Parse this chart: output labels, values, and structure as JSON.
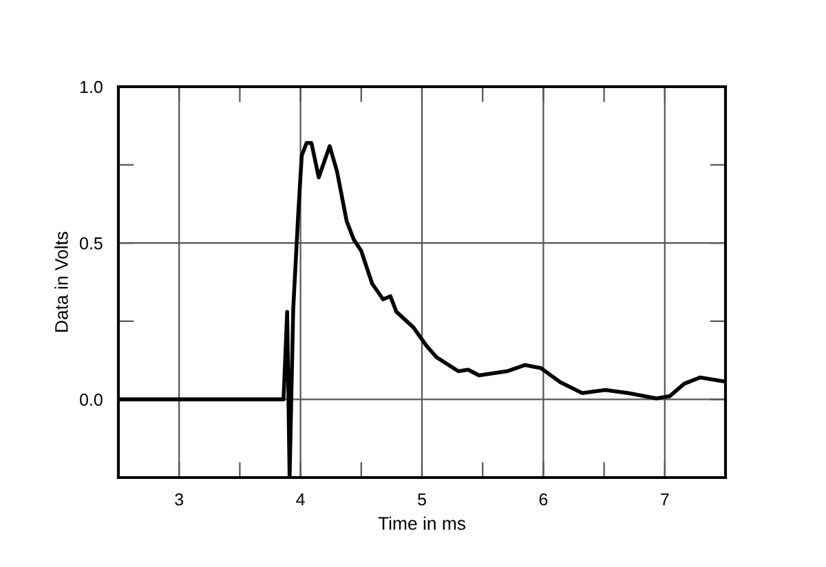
{
  "chart_data": {
    "type": "line",
    "xlabel": "Time in ms",
    "ylabel": "Data in Volts",
    "x": [
      2.5,
      3.0,
      3.5,
      3.85,
      3.86,
      3.89,
      3.91,
      3.94,
      3.98,
      4.01,
      4.05,
      4.09,
      4.15,
      4.24,
      4.3,
      4.38,
      4.44,
      4.5,
      4.59,
      4.68,
      4.74,
      4.79,
      4.93,
      5.04,
      5.12,
      5.3,
      5.38,
      5.47,
      5.7,
      5.85,
      5.98,
      6.14,
      6.32,
      6.51,
      6.7,
      6.93,
      7.04,
      7.16,
      7.29,
      7.48
    ],
    "series": [
      {
        "color": "#000000",
        "values": [
          0,
          0,
          0,
          0,
          0.0,
          0.28,
          -0.25,
          0.29,
          0.585,
          0.78,
          0.82,
          0.82,
          0.71,
          0.81,
          0.73,
          0.57,
          0.51,
          0.475,
          0.37,
          0.32,
          0.33,
          0.28,
          0.23,
          0.17,
          0.135,
          0.09,
          0.095,
          0.077,
          0.09,
          0.11,
          0.1,
          0.055,
          0.02,
          0.03,
          0.02,
          0.003,
          0.01,
          0.05,
          0.07,
          0.058
        ]
      }
    ],
    "xlim": [
      2.5,
      7.5
    ],
    "ylim": [
      -0.25,
      1.0
    ],
    "xticks": [
      3,
      {
        "value": 3.5,
        "label": null
      },
      4,
      {
        "value": 4.5,
        "label": null
      },
      5,
      {
        "value": 5.5,
        "label": null
      },
      6,
      {
        "value": 6.5,
        "label": null
      },
      7
    ],
    "yticks": [
      {
        "value": 0.0,
        "label": "0.0"
      },
      {
        "value": 0.25,
        "label": null
      },
      {
        "value": 0.5,
        "label": "0.5"
      },
      {
        "value": 0.75,
        "label": null
      },
      {
        "value": 1.0,
        "label": "1.0"
      }
    ],
    "grid": true,
    "marker": "none",
    "line_style": "solid"
  }
}
